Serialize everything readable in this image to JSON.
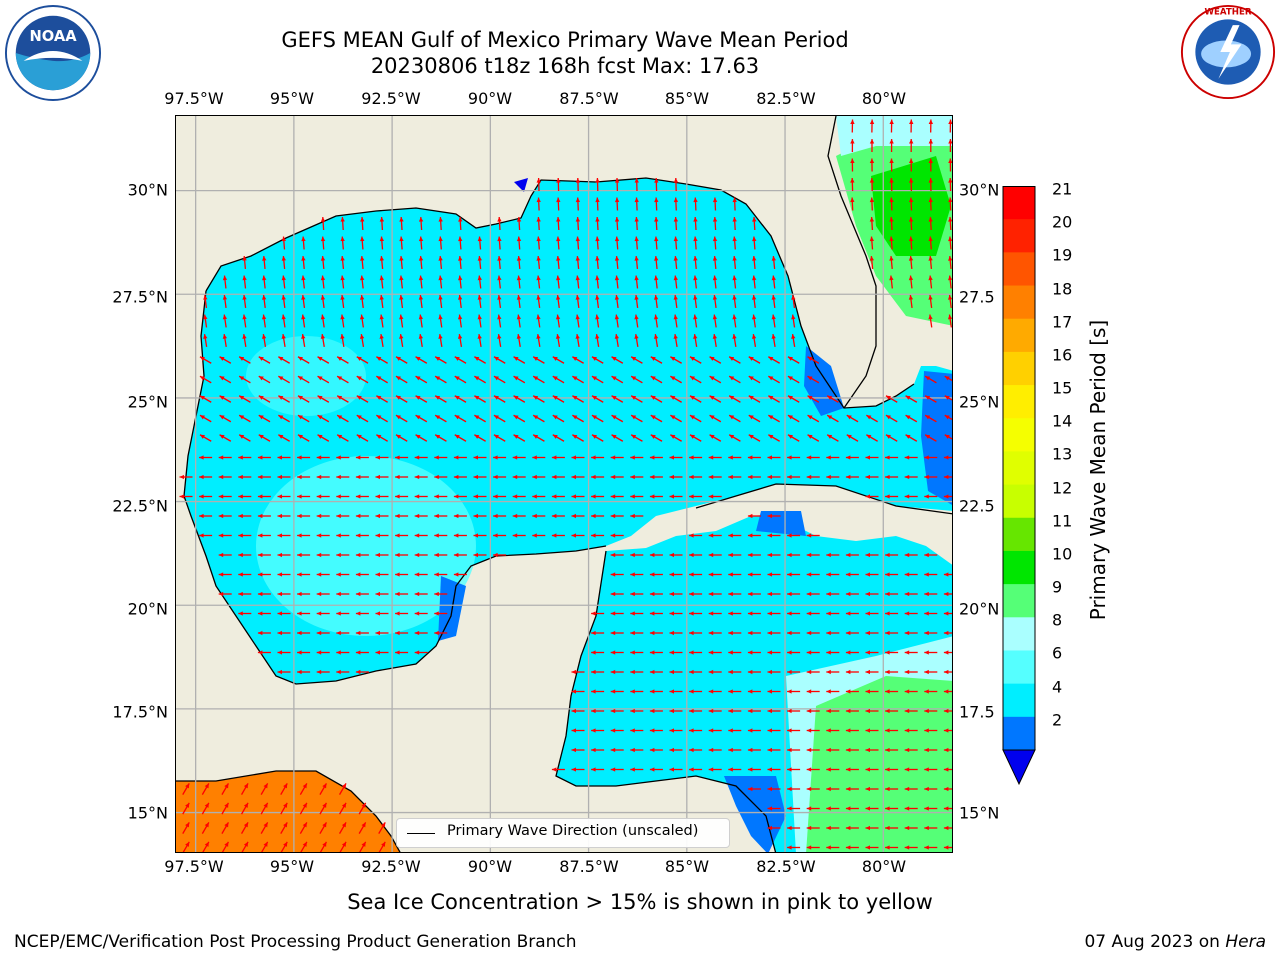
{
  "header": {
    "title_line1": "GEFS MEAN Gulf of Mexico Primary Wave Mean Period",
    "title_line2": "20230806 t18z 168h fcst   Max: 17.63"
  },
  "logos": {
    "noaa": {
      "text": "NOAA",
      "ring_text": "NATIONAL OCEANIC AND ATMOSPHERIC ADMINISTRATION · U.S. DEPARTMENT OF COMMERCE"
    },
    "nws": {
      "ring_text": "NATIONAL WEATHER SERVICE"
    }
  },
  "map": {
    "lon_ticks": [
      "97.5°W",
      "95°W",
      "92.5°W",
      "90°W",
      "87.5°W",
      "85°W",
      "82.5°W",
      "80°W"
    ],
    "lat_ticks_left": [
      "30°N",
      "27.5°N",
      "25°N",
      "22.5°N",
      "20°N",
      "17.5°N",
      "15°N"
    ],
    "lat_ticks_right": [
      "30°N",
      "27.5",
      "25°N",
      "22.5",
      "20°N",
      "17.5",
      "15°N"
    ],
    "extent": {
      "lon_min": -98,
      "lon_max": -78.2,
      "lat_min": 14.0,
      "lat_max": 31.8
    },
    "land_color": "#efedde",
    "arrow_color": "#ff0000"
  },
  "colorbar": {
    "label": "Primary Wave Mean Period [s]",
    "ticks": [
      "21",
      "20",
      "19",
      "18",
      "17",
      "16",
      "15",
      "14",
      "13",
      "12",
      "11",
      "10",
      "9",
      "8",
      "6",
      "4",
      "2"
    ],
    "colors": [
      "#ff0000",
      "#ff2200",
      "#ff5500",
      "#ff8000",
      "#ffaa00",
      "#ffd000",
      "#ffee00",
      "#f5ff00",
      "#e0ff00",
      "#c8ff00",
      "#66e600",
      "#00e600",
      "#55ff77",
      "#aaffff",
      "#55ffff",
      "#00eeff",
      "#0077ff"
    ],
    "extend_color": "#0000ee"
  },
  "legend": {
    "text": "Primary Wave Direction (unscaled)"
  },
  "caption": "Sea Ice Concentration > 15% is shown in pink to yellow",
  "footer": {
    "left": "NCEP/EMC/Verification Post Processing Product Generation Branch",
    "right_prefix": "07 Aug 2023 on ",
    "right_machine": "Hera"
  }
}
